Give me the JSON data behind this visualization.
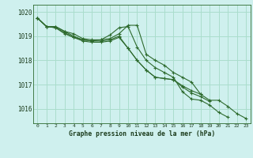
{
  "title": "Graphe pression niveau de la mer (hPa)",
  "bg_color": "#cff0ee",
  "grid_color": "#aaddcc",
  "line_color": "#2d6a2d",
  "text_color": "#1a3a1a",
  "x_labels": [
    "0",
    "1",
    "2",
    "3",
    "4",
    "5",
    "6",
    "7",
    "8",
    "9",
    "10",
    "11",
    "12",
    "13",
    "14",
    "15",
    "16",
    "17",
    "18",
    "19",
    "20",
    "21",
    "22",
    "23"
  ],
  "ylim": [
    1015.4,
    1020.3
  ],
  "yticks": [
    1016,
    1017,
    1018,
    1019,
    1020
  ],
  "series": [
    [
      1019.75,
      1019.4,
      1019.4,
      1019.2,
      1019.1,
      1018.9,
      1018.85,
      1018.85,
      1018.9,
      1019.1,
      1019.45,
      1019.45,
      1018.25,
      1018.0,
      1017.8,
      1017.5,
      1017.3,
      1017.1,
      1016.6,
      1016.35,
      1016.35,
      1016.1,
      1015.8,
      1015.6
    ],
    [
      1019.75,
      1019.4,
      1019.4,
      1019.2,
      1019.0,
      1018.85,
      1018.8,
      1018.85,
      1019.05,
      1019.35,
      1019.4,
      1018.55,
      1018.0,
      1017.7,
      1017.5,
      1017.3,
      1016.7,
      1016.4,
      1016.35,
      1016.15,
      1015.85,
      1015.65,
      null,
      null
    ],
    [
      1019.75,
      1019.4,
      1019.35,
      1019.15,
      1018.95,
      1018.85,
      1018.8,
      1018.8,
      1018.85,
      1019.0,
      1018.5,
      1018.0,
      1017.6,
      1017.3,
      1017.25,
      1017.2,
      1016.9,
      1016.65,
      1016.5,
      1016.3,
      null,
      null,
      null,
      null
    ],
    [
      1019.75,
      1019.4,
      1019.35,
      1019.1,
      1018.95,
      1018.8,
      1018.75,
      1018.75,
      1018.8,
      1018.95,
      1018.5,
      1018.0,
      1017.6,
      1017.3,
      1017.25,
      1017.2,
      1016.95,
      1016.75,
      1016.6,
      null,
      null,
      null,
      null,
      null
    ]
  ]
}
